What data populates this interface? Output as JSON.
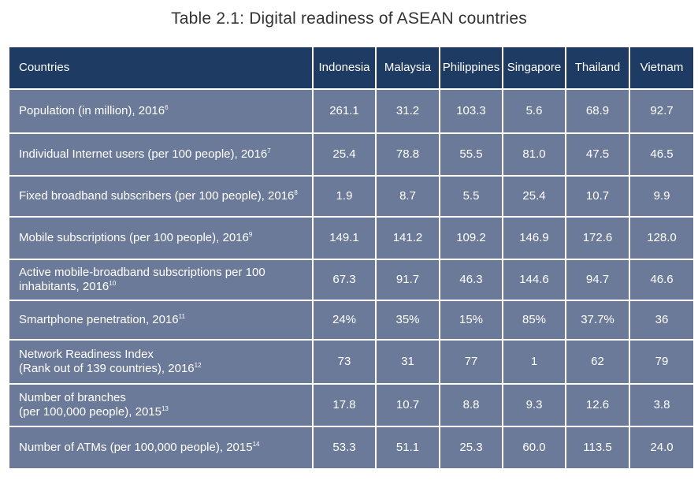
{
  "title": "Table 2.1: Digital readiness of ASEAN countries",
  "table": {
    "header": [
      "Countries",
      "Indonesia",
      "Malaysia",
      "Philippines",
      "Singapore",
      "Thailand",
      "Vietnam"
    ],
    "rows": [
      {
        "label": "Population (in million), 2016",
        "note": "6",
        "values": [
          "261.1",
          "31.2",
          "103.3",
          "5.6",
          "68.9",
          "92.7"
        ]
      },
      {
        "label": "Individual Internet users (per 100 people), 2016",
        "note": "7",
        "values": [
          "25.4",
          "78.8",
          "55.5",
          "81.0",
          "47.5",
          "46.5"
        ]
      },
      {
        "label": "Fixed broadband subscribers (per 100 people), 2016",
        "note": "8",
        "values": [
          "1.9",
          "8.7",
          "5.5",
          "25.4",
          "10.7",
          "9.9"
        ]
      },
      {
        "label": "Mobile subscriptions (per 100 people), 2016",
        "note": "9",
        "values": [
          "149.1",
          "141.2",
          "109.2",
          "146.9",
          "172.6",
          "128.0"
        ]
      },
      {
        "label_line1": "Active mobile-broadband subscriptions per 100",
        "label_line2": "inhabitants, 2016",
        "note": "10",
        "values": [
          "67.3",
          "91.7",
          "46.3",
          "144.6",
          "94.7",
          "46.6"
        ]
      },
      {
        "label": "Smartphone penetration, 2016",
        "note": "11",
        "values": [
          "24%",
          "35%",
          "15%",
          "85%",
          "37.7%",
          "36"
        ]
      },
      {
        "label_line1": "Network Readiness Index",
        "label_line2": "(Rank out of 139 countries), 2016",
        "note": "12",
        "values": [
          "73",
          "31",
          "77",
          "1",
          "62",
          "79"
        ]
      },
      {
        "label_line1": "Number of branches",
        "label_line2": "(per 100,000 people), 2015",
        "note": "13",
        "values": [
          "17.8",
          "10.7",
          "8.8",
          "9.3",
          "12.6",
          "3.8"
        ]
      },
      {
        "label": "Number of ATMs (per 100,000 people), 2015",
        "note": "14",
        "values": [
          "53.3",
          "51.1",
          "25.3",
          "60.0",
          "113.5",
          "24.0"
        ]
      }
    ]
  },
  "colors": {
    "header_bg": "#1e3b64",
    "body_bg": "#6b7a98",
    "title_text": "#333333"
  }
}
